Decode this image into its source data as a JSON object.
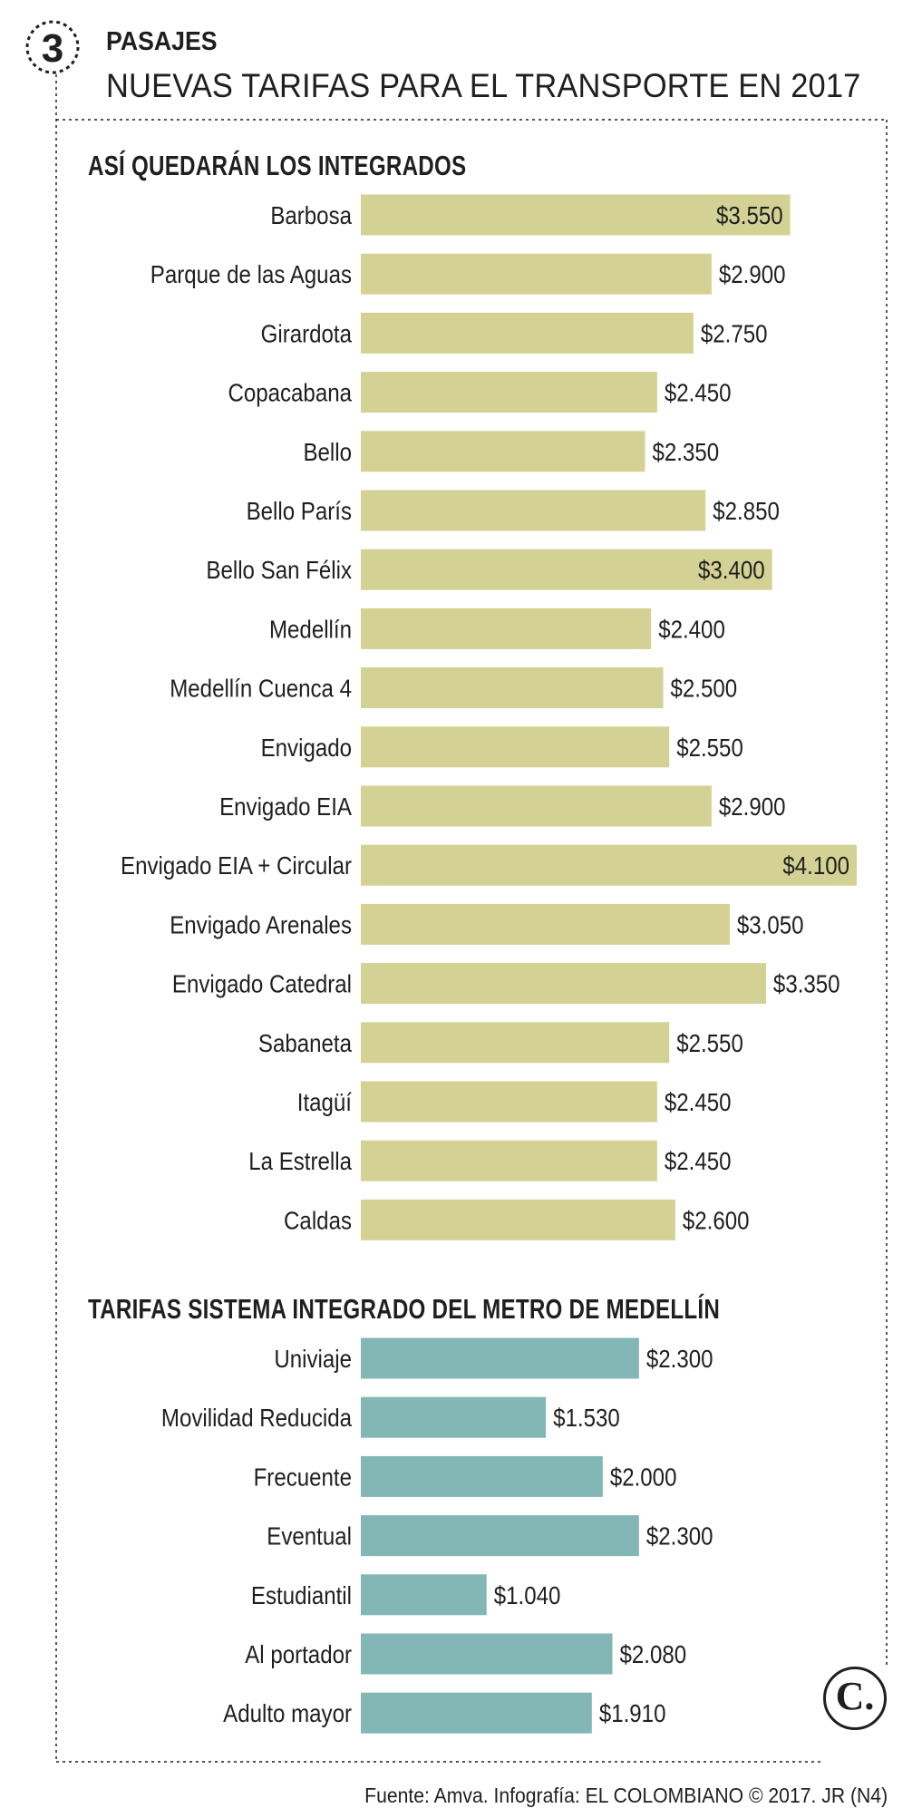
{
  "header": {
    "kicker": "PASAJES",
    "headline": "NUEVAS TARIFAS PARA EL TRANSPORTE EN 2017",
    "section_number": "3"
  },
  "footer": {
    "source": "Fuente: Amva. Infografía: EL COLOMBIANO © 2017. JR (N4)",
    "logo_text": "C."
  },
  "colors": {
    "integrados_bar": "#d3d294",
    "metro_bar": "#82b7b6",
    "text": "#1f1f1f"
  },
  "chart_data": [
    {
      "type": "bar",
      "orientation": "horizontal",
      "title": "ASÍ QUEDARÁN LOS INTEGRADOS",
      "categories": [
        "Barbosa",
        "Parque de las Aguas",
        "Girardota",
        "Copacabana",
        "Bello",
        "Bello París",
        "Bello San Félix",
        "Medellín",
        "Medellín Cuenca 4",
        "Envigado",
        "Envigado EIA",
        "Envigado EIA + Circular",
        "Envigado Arenales",
        "Envigado Catedral",
        "Sabaneta",
        "Itagüí",
        "La Estrella",
        "Caldas"
      ],
      "values": [
        3550,
        2900,
        2750,
        2450,
        2350,
        2850,
        3400,
        2400,
        2500,
        2550,
        2900,
        4100,
        3050,
        3350,
        2550,
        2450,
        2450,
        2600
      ],
      "labels": [
        "$3.550",
        "$2.900",
        "$2.750",
        "$2.450",
        "$2.350",
        "$2.850",
        "$3.400",
        "$2.400",
        "$2.500",
        "$2.550",
        "$2.900",
        "$4.100",
        "$3.050",
        "$3.350",
        "$2.550",
        "$2.450",
        "$2.450",
        "$2.600"
      ],
      "inside_labels": [
        true,
        false,
        false,
        false,
        false,
        false,
        true,
        false,
        false,
        false,
        false,
        true,
        false,
        false,
        false,
        false,
        false,
        false
      ],
      "xlabel": "",
      "ylabel": "",
      "xlim": [
        0,
        4100
      ],
      "grid": false,
      "color": "#d3d294"
    },
    {
      "type": "bar",
      "orientation": "horizontal",
      "title": "TARIFAS SISTEMA INTEGRADO DEL METRO DE MEDELLÍN",
      "categories": [
        "Univiaje",
        "Movilidad Reducida",
        "Frecuente",
        "Eventual",
        "Estudiantil",
        "Al portador",
        "Adulto mayor"
      ],
      "values": [
        2300,
        1530,
        2000,
        2300,
        1040,
        2080,
        1910
      ],
      "labels": [
        "$2.300",
        "$1.530",
        "$2.000",
        "$2.300",
        "$1.040",
        "$2.080",
        "$1.910"
      ],
      "inside_labels": [
        false,
        false,
        false,
        false,
        false,
        false,
        false
      ],
      "xlabel": "",
      "ylabel": "",
      "xlim": [
        0,
        4100
      ],
      "grid": false,
      "color": "#82b7b6"
    }
  ]
}
